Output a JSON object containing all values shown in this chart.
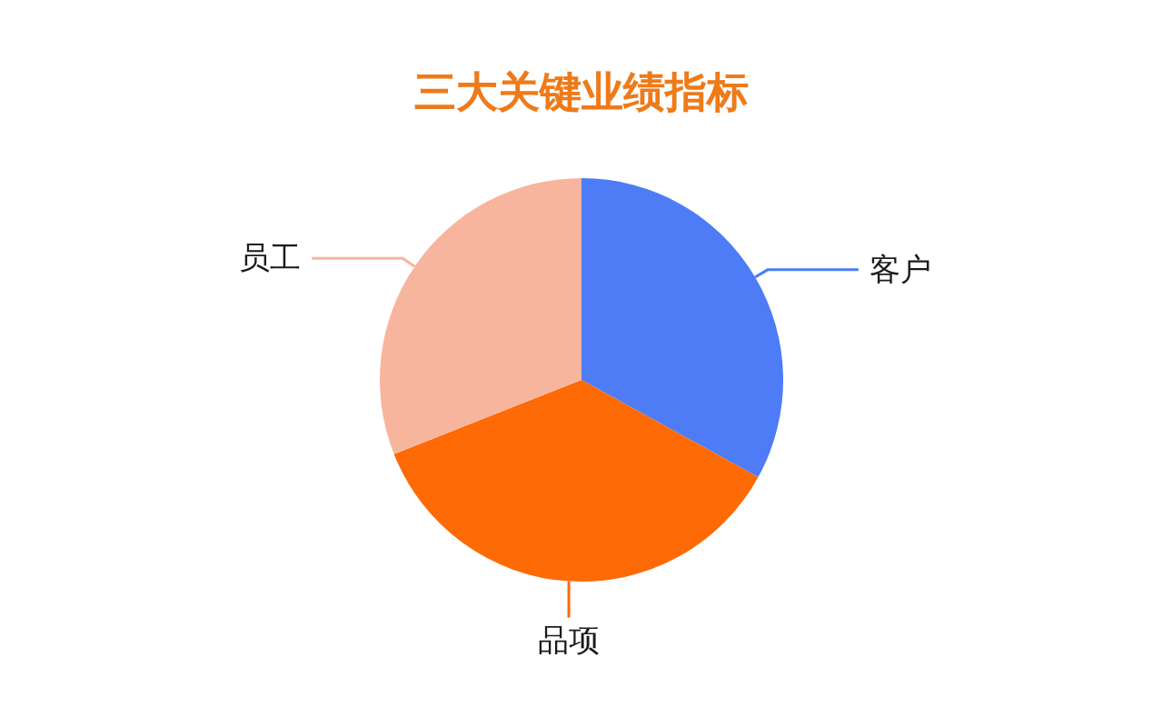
{
  "chart_data": {
    "type": "pie",
    "title": "三大关键业绩指标",
    "categories": [
      "客户",
      "品项",
      "员工"
    ],
    "values": [
      33,
      36,
      31
    ],
    "colors": [
      "#4e7cf7",
      "#fd6a06",
      "#f8b59d"
    ]
  }
}
